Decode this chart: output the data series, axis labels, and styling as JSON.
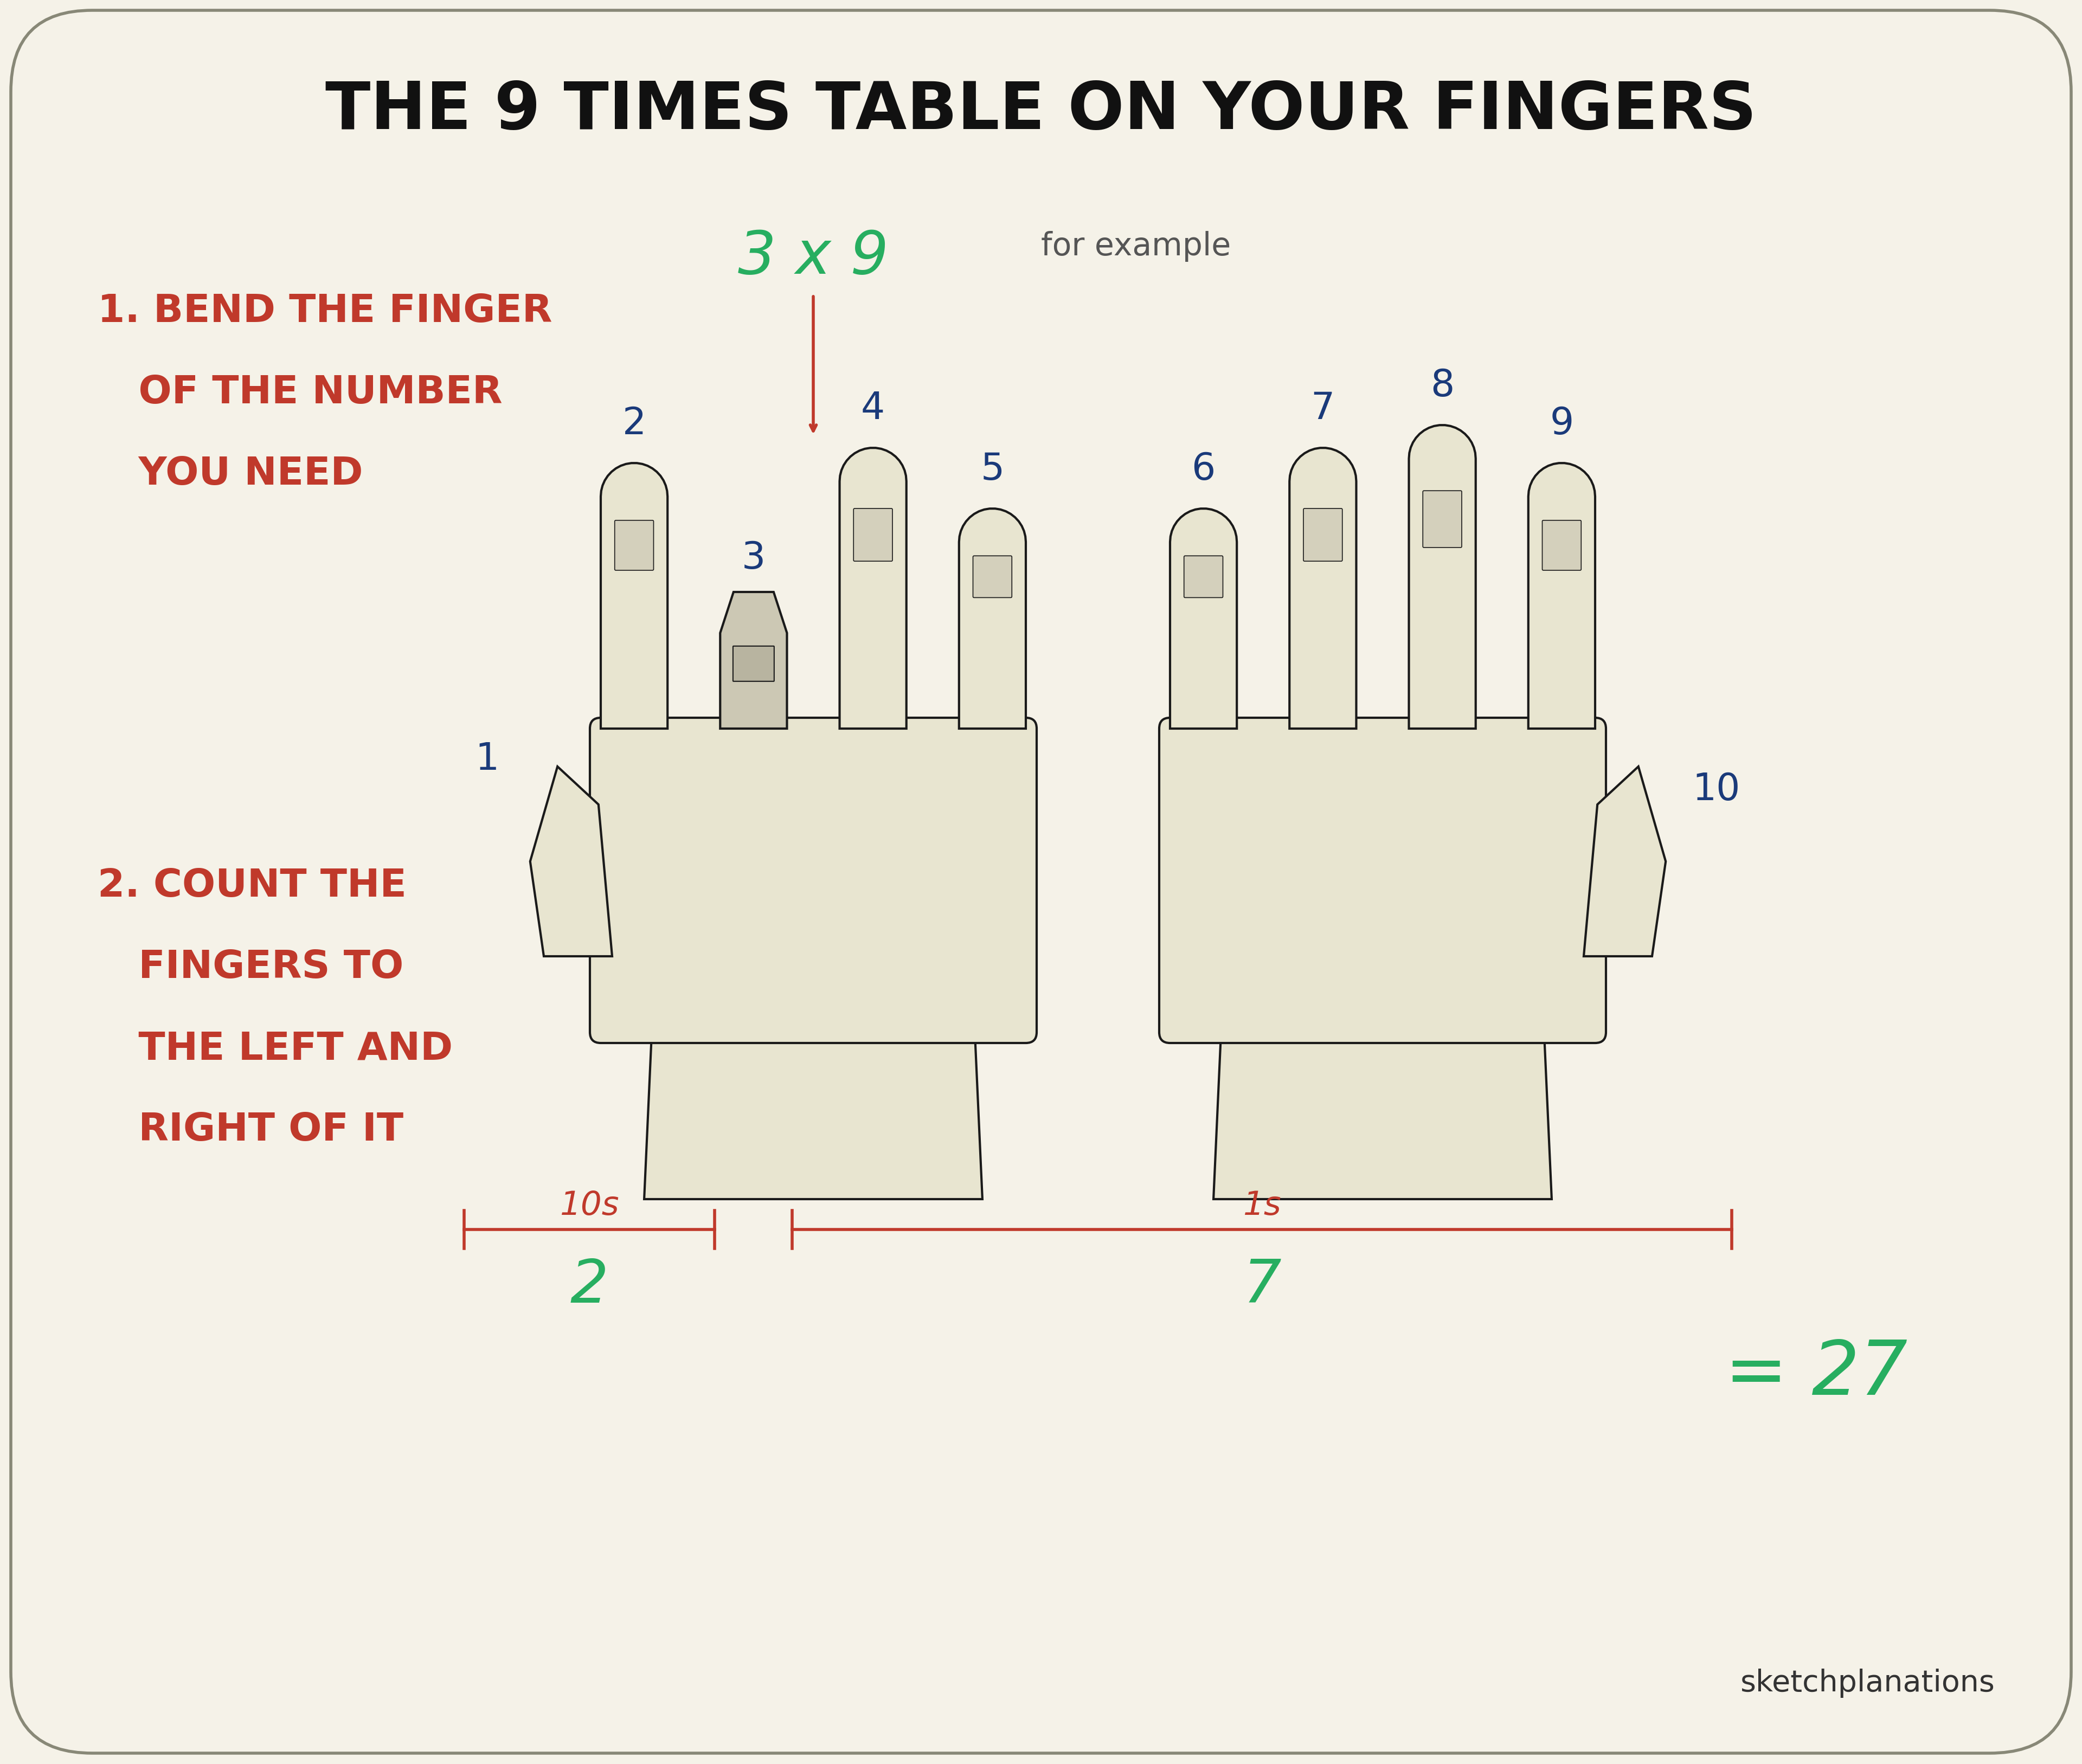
{
  "bg_color": "#f5f2e8",
  "border_color": "#888877",
  "title": "THE 9 TIMES TABLE ON YOUR FINGERS",
  "title_color": "#111111",
  "title_fontsize": 88,
  "step1_lines": [
    "1. BEND THE FINGER",
    "   OF THE NUMBER",
    "   YOU NEED"
  ],
  "step2_lines": [
    "2. COUNT THE",
    "   FINGERS TO",
    "   THE LEFT AND",
    "   RIGHT OF IT"
  ],
  "step_color": "#c0392b",
  "step_fontsize": 52,
  "example_text": "3 x 9",
  "example_color": "#27ae60",
  "example_fontsize": 80,
  "for_example_text": "for example",
  "for_example_color": "#555555",
  "for_example_fontsize": 42,
  "arrow_color": "#c0392b",
  "finger_numbers_color": "#1a3a7a",
  "tens_label": "10s",
  "ones_label": "1s",
  "bracket_color": "#c0392b",
  "result_2": "2",
  "result_7": "7",
  "result_color": "#27ae60",
  "result_fontsize": 80,
  "equals_result": "= 27",
  "equals_color": "#27ae60",
  "equals_fontsize": 100,
  "sketchplanations_text": "sketchplanations",
  "sketchplanations_color": "#333333",
  "sketchplanations_fontsize": 40,
  "hand_fill": "#e8e5d0",
  "hand_edge": "#1a1a1a",
  "hand_lw": 3.0
}
